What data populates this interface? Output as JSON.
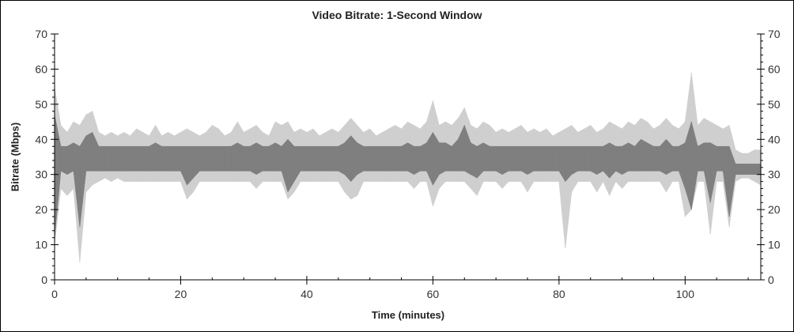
{
  "chart_data": {
    "type": "area",
    "title": "Video Bitrate: 1-Second Window",
    "xlabel": "Time (minutes)",
    "ylabel": "Bitrate (Mbps)",
    "xlim": [
      0,
      112
    ],
    "ylim": [
      0,
      70
    ],
    "x_ticks": [
      "0",
      "20",
      "40",
      "60",
      "80",
      "100"
    ],
    "y_ticks": [
      "0",
      "10",
      "20",
      "30",
      "40",
      "50",
      "60",
      "70"
    ],
    "grid": false,
    "colors": {
      "peak_band": "#cfcfcf",
      "average_band": "#7f7f7f",
      "axis": "#000000"
    },
    "x_minutes_step": 1,
    "series": [
      {
        "role": "peak-max",
        "values": [
          55,
          44,
          42,
          45,
          44,
          47,
          48,
          42,
          41,
          42,
          41,
          42,
          41,
          43,
          42,
          41,
          44,
          41,
          42,
          41,
          42,
          43,
          42,
          41,
          42,
          44,
          43,
          41,
          42,
          45,
          42,
          43,
          44,
          42,
          41,
          45,
          44,
          45,
          42,
          43,
          42,
          43,
          41,
          42,
          43,
          42,
          44,
          46,
          44,
          42,
          43,
          41,
          42,
          43,
          44,
          43,
          45,
          44,
          43,
          45,
          51,
          44,
          45,
          44,
          46,
          49,
          44,
          43,
          45,
          44,
          42,
          43,
          42,
          43,
          44,
          42,
          43,
          42,
          43,
          41,
          42,
          43,
          44,
          42,
          43,
          44,
          42,
          43,
          45,
          44,
          43,
          45,
          44,
          46,
          45,
          43,
          44,
          46,
          44,
          43,
          45,
          59,
          44,
          46,
          45,
          44,
          43,
          44,
          37,
          36,
          36,
          37,
          37
        ]
      },
      {
        "role": "peak-min",
        "values": [
          10,
          26,
          24,
          26,
          5,
          25,
          27,
          28,
          29,
          28,
          29,
          28,
          28,
          28,
          28,
          28,
          28,
          28,
          28,
          28,
          28,
          23,
          25,
          28,
          28,
          28,
          28,
          28,
          28,
          28,
          28,
          28,
          26,
          28,
          28,
          28,
          28,
          23,
          25,
          28,
          28,
          28,
          28,
          28,
          28,
          28,
          25,
          23,
          24,
          28,
          28,
          28,
          28,
          28,
          28,
          28,
          28,
          26,
          28,
          28,
          21,
          26,
          28,
          28,
          28,
          28,
          26,
          24,
          28,
          28,
          28,
          26,
          28,
          28,
          28,
          25,
          28,
          28,
          28,
          28,
          28,
          9,
          25,
          28,
          28,
          28,
          25,
          28,
          24,
          28,
          26,
          28,
          28,
          28,
          28,
          28,
          28,
          25,
          28,
          28,
          18,
          20,
          28,
          28,
          13,
          28,
          28,
          15,
          28,
          29,
          29,
          28,
          27
        ]
      },
      {
        "role": "average-max",
        "values": [
          47,
          38,
          38,
          39,
          38,
          41,
          42,
          38,
          38,
          38,
          38,
          38,
          38,
          38,
          38,
          38,
          39,
          38,
          38,
          38,
          38,
          38,
          38,
          38,
          38,
          38,
          38,
          38,
          38,
          39,
          38,
          38,
          39,
          38,
          38,
          39,
          38,
          40,
          38,
          38,
          38,
          38,
          38,
          38,
          38,
          38,
          39,
          41,
          39,
          38,
          38,
          38,
          38,
          38,
          38,
          38,
          39,
          38,
          38,
          39,
          42,
          39,
          39,
          38,
          40,
          44,
          39,
          38,
          39,
          38,
          38,
          38,
          38,
          38,
          38,
          38,
          38,
          38,
          38,
          38,
          38,
          38,
          38,
          38,
          38,
          38,
          38,
          38,
          39,
          38,
          38,
          39,
          38,
          40,
          39,
          38,
          38,
          40,
          38,
          38,
          39,
          45,
          38,
          39,
          39,
          38,
          38,
          38,
          33,
          33,
          33,
          33,
          33
        ]
      },
      {
        "role": "average-min",
        "values": [
          12,
          31,
          30,
          31,
          15,
          31,
          31,
          31,
          31,
          31,
          31,
          31,
          31,
          31,
          31,
          31,
          31,
          31,
          31,
          31,
          31,
          27,
          29,
          31,
          31,
          31,
          31,
          31,
          31,
          31,
          31,
          31,
          30,
          31,
          31,
          31,
          31,
          25,
          28,
          31,
          31,
          31,
          31,
          31,
          31,
          31,
          30,
          28,
          30,
          31,
          31,
          31,
          31,
          31,
          31,
          31,
          31,
          30,
          31,
          31,
          27,
          30,
          31,
          31,
          31,
          31,
          30,
          29,
          31,
          31,
          31,
          30,
          31,
          31,
          31,
          30,
          31,
          31,
          31,
          31,
          31,
          28,
          30,
          31,
          31,
          31,
          30,
          31,
          29,
          31,
          30,
          31,
          31,
          31,
          31,
          31,
          31,
          30,
          31,
          31,
          26,
          20,
          31,
          31,
          22,
          31,
          31,
          18,
          30,
          30,
          30,
          30,
          30
        ]
      }
    ]
  }
}
